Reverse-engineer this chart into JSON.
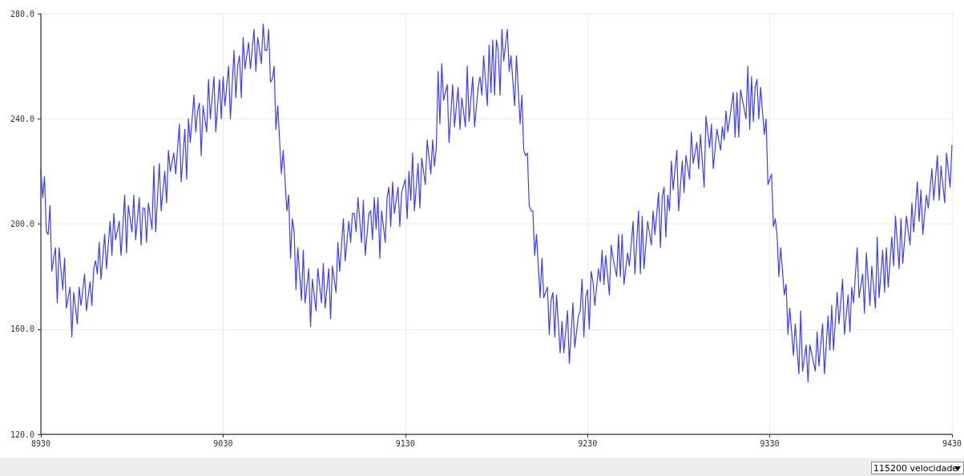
{
  "chart_data": {
    "type": "line",
    "x": [
      8930,
      8931,
      8932,
      8933,
      8934,
      8935,
      8936,
      8938,
      8939,
      8940,
      8942,
      8943,
      8944,
      8946,
      8947,
      8948,
      8950,
      8951,
      8952,
      8954,
      8955,
      8957,
      8958,
      8959,
      8960,
      8961,
      8962,
      8963,
      8965,
      8966,
      8968,
      8969,
      8970,
      8971,
      8973,
      8974,
      8976,
      8977,
      8978,
      8980,
      8981,
      8982,
      8984,
      8985,
      8986,
      8987,
      8988,
      8989,
      8991,
      8992,
      8993,
      8995,
      8996,
      8998,
      8999,
      9000,
      9001,
      9003,
      9004,
      9006,
      9007,
      9009,
      9010,
      9011,
      9012,
      9014,
      9015,
      9016,
      9017,
      9018,
      9019,
      9021,
      9022,
      9023,
      9025,
      9026,
      9028,
      9029,
      9030,
      9031,
      9033,
      9034,
      9036,
      9037,
      9038,
      9039,
      9040,
      9041,
      9042,
      9044,
      9045,
      9047,
      9048,
      9049,
      9051,
      9052,
      9053,
      9054,
      9055,
      9056,
      9057,
      9058,
      9059,
      9060,
      9062,
      9063,
      9065,
      9066,
      9067,
      9068,
      9069,
      9070,
      9071,
      9073,
      9074,
      9075,
      9077,
      9078,
      9079,
      9081,
      9082,
      9084,
      9085,
      9086,
      9088,
      9089,
      9090,
      9092,
      9093,
      9094,
      9096,
      9097,
      9099,
      9100,
      9101,
      9102,
      9103,
      9104,
      9106,
      9107,
      9108,
      9110,
      9111,
      9112,
      9113,
      9114,
      9115,
      9116,
      9117,
      9119,
      9120,
      9121,
      9122,
      9123,
      9124,
      9126,
      9127,
      9128,
      9130,
      9131,
      9132,
      9133,
      9134,
      9135,
      9137,
      9138,
      9139,
      9141,
      9142,
      9144,
      9145,
      9146,
      9147,
      9148,
      9149,
      9150,
      9151,
      9153,
      9154,
      9156,
      9157,
      9159,
      9160,
      9161,
      9163,
      9164,
      9165,
      9167,
      9168,
      9170,
      9171,
      9172,
      9173,
      9175,
      9176,
      9177,
      9178,
      9179,
      9180,
      9181,
      9182,
      9183,
      9184,
      9186,
      9187,
      9188,
      9190,
      9191,
      9193,
      9194,
      9195,
      9196,
      9197,
      9198,
      9199,
      9200,
      9201,
      9202,
      9204,
      9205,
      9206,
      9208,
      9209,
      9210,
      9211,
      9212,
      9213,
      9215,
      9216,
      9217,
      9219,
      9220,
      9222,
      9223,
      9225,
      9226,
      9227,
      9228,
      9229,
      9230,
      9231,
      9232,
      9233,
      9234,
      9236,
      9237,
      9238,
      9239,
      9240,
      9242,
      9243,
      9244,
      9246,
      9247,
      9248,
      9249,
      9250,
      9252,
      9253,
      9255,
      9256,
      9258,
      9259,
      9260,
      9261,
      9263,
      9265,
      9266,
      9267,
      9269,
      9270,
      9271,
      9272,
      9273,
      9274,
      9275,
      9276,
      9277,
      9279,
      9280,
      9282,
      9283,
      9284,
      9286,
      9287,
      9288,
      9290,
      9291,
      9292,
      9294,
      9295,
      9297,
      9298,
      9299,
      9301,
      9303,
      9304,
      9305,
      9306,
      9307,
      9310,
      9311,
      9312,
      9313,
      9314,
      9317,
      9318,
      9319,
      9320,
      9321,
      9322,
      9323,
      9324,
      9325,
      9327,
      9328,
      9329,
      9331,
      9332,
      9333,
      9334,
      9335,
      9336,
      9338,
      9339,
      9340,
      9341,
      9343,
      9344,
      9346,
      9347,
      9348,
      9350,
      9351,
      9352,
      9355,
      9356,
      9357,
      9359,
      9360,
      9362,
      9363,
      9364,
      9365,
      9367,
      9368,
      9370,
      9371,
      9373,
      9374,
      9375,
      9376,
      9378,
      9379,
      9381,
      9382,
      9383,
      9385,
      9386,
      9388,
      9389,
      9390,
      9392,
      9393,
      9394,
      9395,
      9397,
      9398,
      9399,
      9401,
      9402,
      9403,
      9405,
      9407,
      9408,
      9409,
      9411,
      9412,
      9413,
      9414,
      9416,
      9417,
      9419,
      9420,
      9422,
      9423,
      9424,
      9426,
      9427,
      9429,
      9430
    ],
    "series": [
      {
        "color": "#3c3cff",
        "values": [
          221,
          210,
          218,
          197,
          196,
          207,
          182,
          191,
          170,
          191,
          175,
          187,
          168,
          176,
          157,
          174,
          162,
          176,
          169,
          181,
          167,
          178,
          169,
          183,
          186,
          181,
          193,
          179,
          196,
          183,
          201,
          188,
          204,
          194,
          201,
          188,
          211,
          189,
          207,
          197,
          211,
          194,
          210,
          192,
          206,
          206,
          193,
          208,
          198,
          222,
          197,
          223,
          205,
          220,
          208,
          228,
          220,
          227,
          219,
          238,
          216,
          236,
          217,
          240,
          231,
          249,
          235,
          243,
          246,
          226,
          245,
          235,
          255,
          240,
          256,
          235,
          255,
          240,
          256,
          245,
          260,
          240,
          266,
          248,
          260,
          264,
          248,
          271,
          259,
          269,
          259,
          274,
          258,
          271,
          261,
          276,
          266,
          266,
          274,
          254,
          255,
          260,
          236,
          245,
          219,
          228,
          205,
          211,
          187,
          202,
          197,
          175,
          191,
          171,
          190,
          170,
          183,
          161,
          179,
          167,
          183,
          170,
          185,
          168,
          183,
          164,
          184,
          174,
          193,
          182,
          202,
          186,
          201,
          193,
          204,
          204,
          197,
          210,
          193,
          209,
          188,
          204,
          205,
          194,
          210,
          198,
          210,
          187,
          205,
          193,
          210,
          214,
          199,
          216,
          204,
          214,
          199,
          212,
          217,
          202,
          220,
          209,
          227,
          205,
          223,
          206,
          225,
          215,
          232,
          219,
          232,
          222,
          229,
          258,
          238,
          261,
          247,
          253,
          231,
          253,
          237,
          252,
          236,
          248,
          237,
          260,
          239,
          256,
          237,
          252,
          256,
          249,
          264,
          245,
          268,
          250,
          270,
          249,
          270,
          266,
          249,
          274,
          262,
          274,
          258,
          264,
          245,
          264,
          238,
          249,
          228,
          226,
          227,
          207,
          205,
          205,
          188,
          196,
          172,
          187,
          172,
          176,
          158,
          171,
          174,
          157,
          173,
          151,
          163,
          151,
          167,
          147,
          170,
          153,
          165,
          167,
          179,
          157,
          172,
          175,
          160,
          182,
          178,
          169,
          183,
          178,
          190,
          177,
          188,
          173,
          192,
          187,
          180,
          196,
          180,
          196,
          177,
          189,
          184,
          201,
          181,
          205,
          181,
          203,
          183,
          201,
          192,
          205,
          196,
          212,
          191,
          210,
          214,
          195,
          211,
          205,
          224,
          213,
          228,
          205,
          224,
          212,
          226,
          217,
          235,
          223,
          231,
          221,
          234,
          214,
          241,
          229,
          238,
          221,
          236,
          228,
          237,
          232,
          243,
          235,
          250,
          233,
          250,
          233,
          251,
          240,
          260,
          236,
          256,
          239,
          252,
          255,
          240,
          252,
          234,
          240,
          215,
          219,
          199,
          202,
          196,
          180,
          191,
          173,
          177,
          158,
          168,
          150,
          162,
          143,
          167,
          144,
          154,
          140,
          154,
          144,
          159,
          146,
          162,
          143,
          165,
          152,
          169,
          152,
          174,
          162,
          179,
          158,
          173,
          159,
          176,
          170,
          191,
          172,
          181,
          166,
          189,
          169,
          184,
          168,
          195,
          172,
          190,
          174,
          191,
          176,
          195,
          184,
          203,
          183,
          202,
          185,
          203,
          192,
          208,
          197,
          216,
          201,
          213,
          196,
          211,
          206,
          221,
          209,
          226,
          209,
          222,
          208,
          227,
          214,
          230
        ]
      }
    ],
    "xlim": [
      8930,
      9430
    ],
    "xticks": [
      8930,
      9030,
      9130,
      9230,
      9330,
      9430
    ],
    "ylim": [
      120,
      280
    ],
    "yticks": [
      {
        "value": 120,
        "label": "120.0"
      },
      {
        "value": 160,
        "label": "160.0"
      },
      {
        "value": 200,
        "label": "200.0"
      },
      {
        "value": 240,
        "label": "240.0"
      },
      {
        "value": 280,
        "label": "280.0"
      }
    ],
    "grid": true,
    "marker": "none",
    "line_style": "solid",
    "annotations": [
      "115200 velocidade"
    ]
  }
}
